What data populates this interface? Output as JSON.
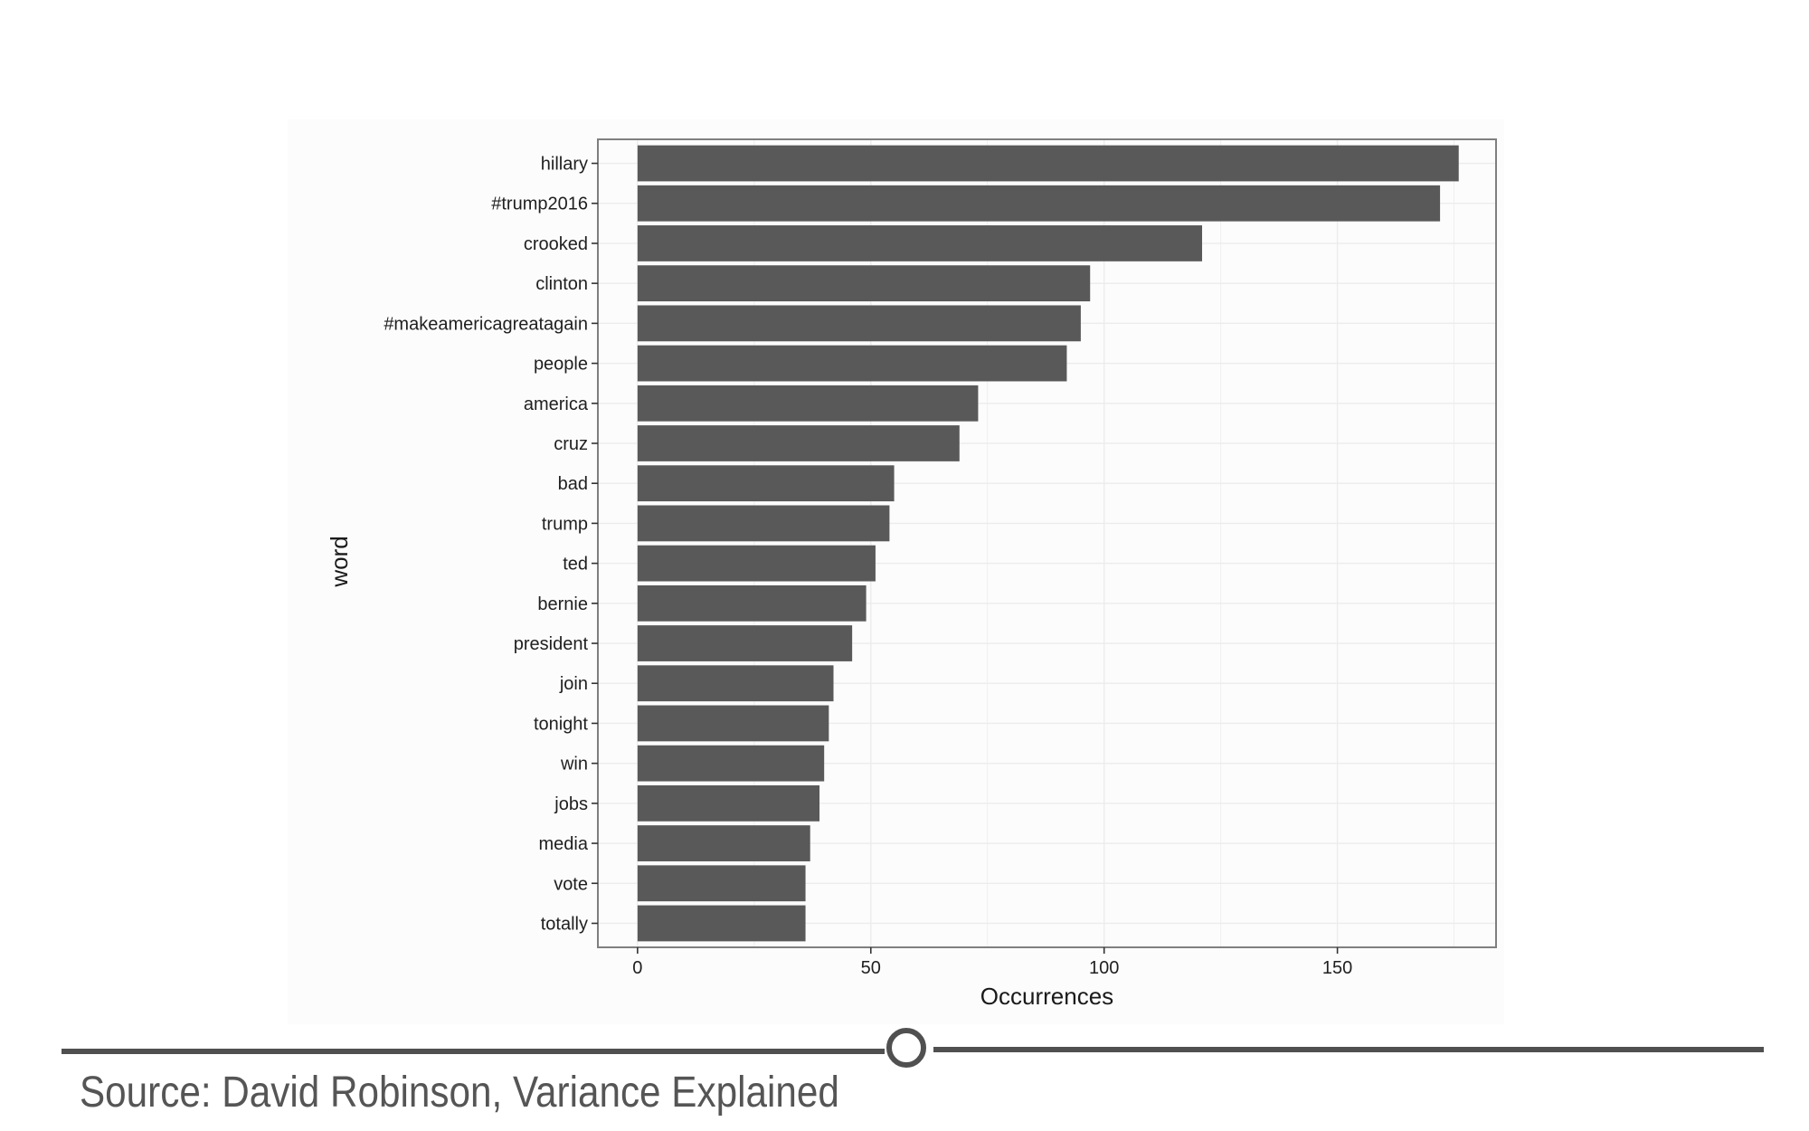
{
  "chart_data": {
    "type": "bar",
    "orientation": "horizontal",
    "categories": [
      "hillary",
      "#trump2016",
      "crooked",
      "clinton",
      "#makeamericagreatagain",
      "people",
      "america",
      "cruz",
      "bad",
      "trump",
      "ted",
      "bernie",
      "president",
      "join",
      "tonight",
      "win",
      "jobs",
      "media",
      "vote",
      "totally"
    ],
    "values": [
      176,
      172,
      121,
      97,
      95,
      92,
      73,
      69,
      55,
      54,
      51,
      49,
      46,
      42,
      41,
      40,
      39,
      37,
      36,
      36
    ],
    "xlabel": "Occurrences",
    "ylabel": "word",
    "xlim": [
      -8.5,
      184
    ],
    "xticks": [
      0,
      50,
      100,
      150
    ],
    "grid": true,
    "bar_color": "#595959",
    "panel_border_color": "#7f7f7f",
    "grid_color": "#ececec"
  },
  "caption": {
    "text": "Source: David Robinson, Variance Explained"
  },
  "slider": {
    "position": 0.5
  }
}
